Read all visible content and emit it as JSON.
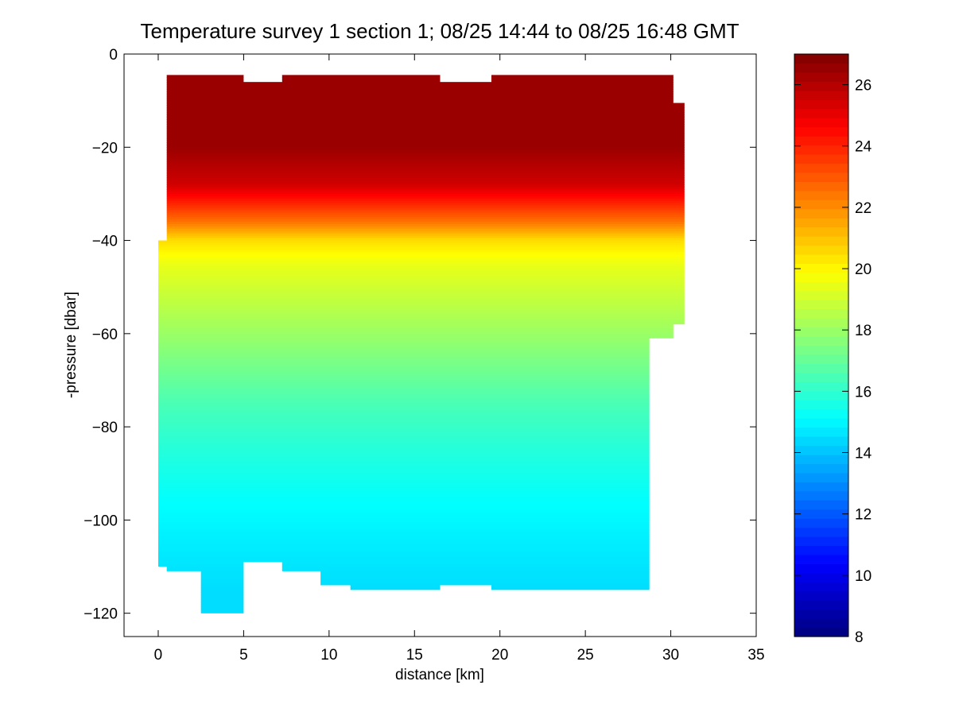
{
  "chart_data": {
    "type": "heatmap",
    "title": "Temperature survey 1 section 1; 08/25 14:44 to 08/25 16:48 GMT",
    "xlabel": "distance [km]",
    "ylabel": "-pressure [dbar]",
    "xlim": [
      -2,
      35
    ],
    "ylim": [
      -125,
      0
    ],
    "xticks": [
      "0",
      "5",
      "10",
      "15",
      "20",
      "25",
      "30",
      "35"
    ],
    "yticks": [
      "0",
      "-20",
      "-40",
      "-60",
      "-80",
      "-100",
      "-120"
    ],
    "colorbar": {
      "label": "",
      "colormap": "jet",
      "clim": [
        8,
        27
      ],
      "ticks": [
        "8",
        "10",
        "12",
        "14",
        "16",
        "18",
        "20",
        "22",
        "24",
        "26"
      ]
    },
    "profiles": [
      {
        "distance": 0.0,
        "top": -40,
        "bottom": -110
      },
      {
        "distance": 1.0,
        "top": -4.5,
        "bottom": -111
      },
      {
        "distance": 4.0,
        "top": -4.5,
        "bottom": -120
      },
      {
        "distance": 6.0,
        "top": -6,
        "bottom": -109
      },
      {
        "distance": 8.5,
        "top": -4.5,
        "bottom": -111
      },
      {
        "distance": 10.5,
        "top": -4.5,
        "bottom": -114
      },
      {
        "distance": 12.0,
        "top": -4.5,
        "bottom": -115
      },
      {
        "distance": 15.0,
        "top": -4.5,
        "bottom": -115
      },
      {
        "distance": 18.0,
        "top": -6,
        "bottom": -114
      },
      {
        "distance": 21.0,
        "top": -4.5,
        "bottom": -115
      },
      {
        "distance": 24.0,
        "top": -4.5,
        "bottom": -115
      },
      {
        "distance": 28.0,
        "top": -4.5,
        "bottom": -115
      },
      {
        "distance": 29.5,
        "top": -4.5,
        "bottom": -61
      },
      {
        "distance": 30.8,
        "top": -10.5,
        "bottom": -58
      }
    ],
    "temperature_profile": {
      "depth": [
        -5,
        -20,
        -28,
        -36,
        -40,
        -45,
        -55,
        -65,
        -75,
        -85,
        -95,
        -105,
        -115
      ],
      "temperature": [
        26.5,
        26.5,
        25.5,
        22.5,
        20.5,
        19.5,
        18.5,
        17.5,
        16.5,
        15.8,
        15.2,
        14.8,
        14.5
      ]
    },
    "grid": false,
    "legend": "colorbar-right"
  }
}
